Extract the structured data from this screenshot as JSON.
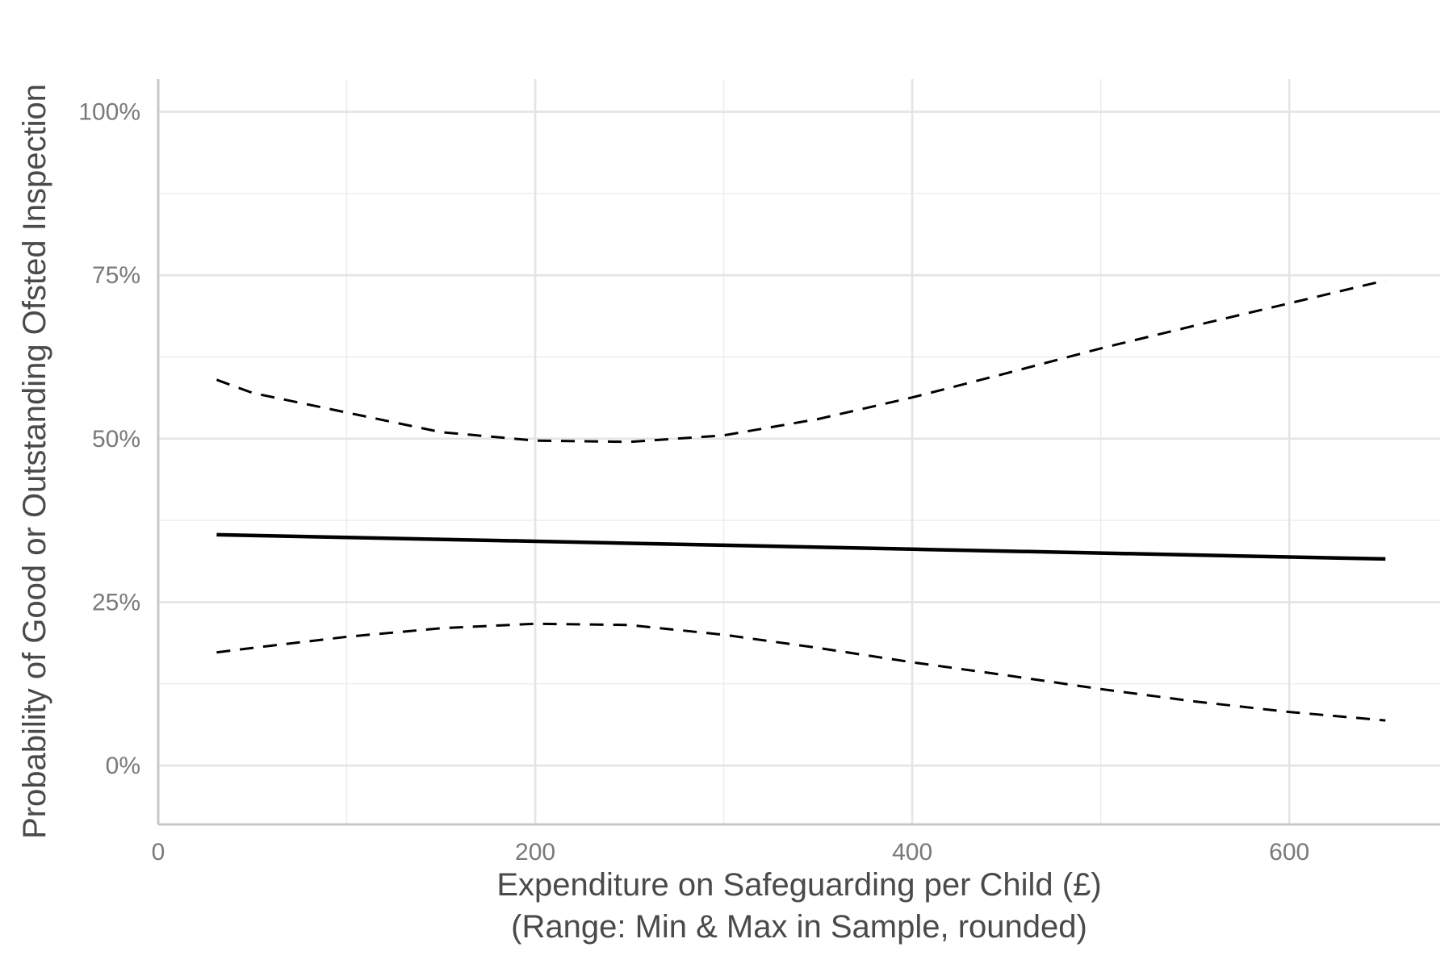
{
  "chart_data": {
    "type": "line",
    "title": "",
    "xlabel": [
      "Expenditure on Safeguarding per Child (£)",
      "(Range: Min & Max in Sample, rounded)"
    ],
    "ylabel": "Probability of Good or Outstanding Ofsted Inspection",
    "xlim": [
      0,
      680
    ],
    "ylim": [
      -0.09,
      1.05
    ],
    "x_ticks": [
      0,
      200,
      400,
      600
    ],
    "x_tick_labels": [
      "0",
      "200",
      "400",
      "600"
    ],
    "y_ticks": [
      0,
      0.25,
      0.5,
      0.75,
      1.0
    ],
    "y_tick_labels": [
      "0%",
      "25%",
      "50%",
      "75%",
      "100%"
    ],
    "grid": true,
    "series": [
      {
        "style": "solid",
        "x": [
          31,
          100,
          200,
          300,
          400,
          500,
          600,
          651
        ],
        "y": [
          0.353,
          0.349,
          0.343,
          0.337,
          0.331,
          0.325,
          0.319,
          0.316
        ]
      },
      {
        "style": "dashed",
        "x": [
          31,
          50,
          100,
          150,
          200,
          250,
          300,
          350,
          400,
          450,
          500,
          550,
          600,
          651
        ],
        "y": [
          0.59,
          0.57,
          0.54,
          0.51,
          0.497,
          0.495,
          0.505,
          0.53,
          0.563,
          0.6,
          0.638,
          0.673,
          0.707,
          0.742
        ]
      },
      {
        "style": "dashed",
        "x": [
          31,
          50,
          100,
          150,
          200,
          250,
          300,
          350,
          400,
          450,
          500,
          550,
          600,
          651
        ],
        "y": [
          0.173,
          0.18,
          0.197,
          0.21,
          0.217,
          0.215,
          0.2,
          0.18,
          0.158,
          0.138,
          0.117,
          0.098,
          0.082,
          0.069
        ]
      }
    ]
  }
}
